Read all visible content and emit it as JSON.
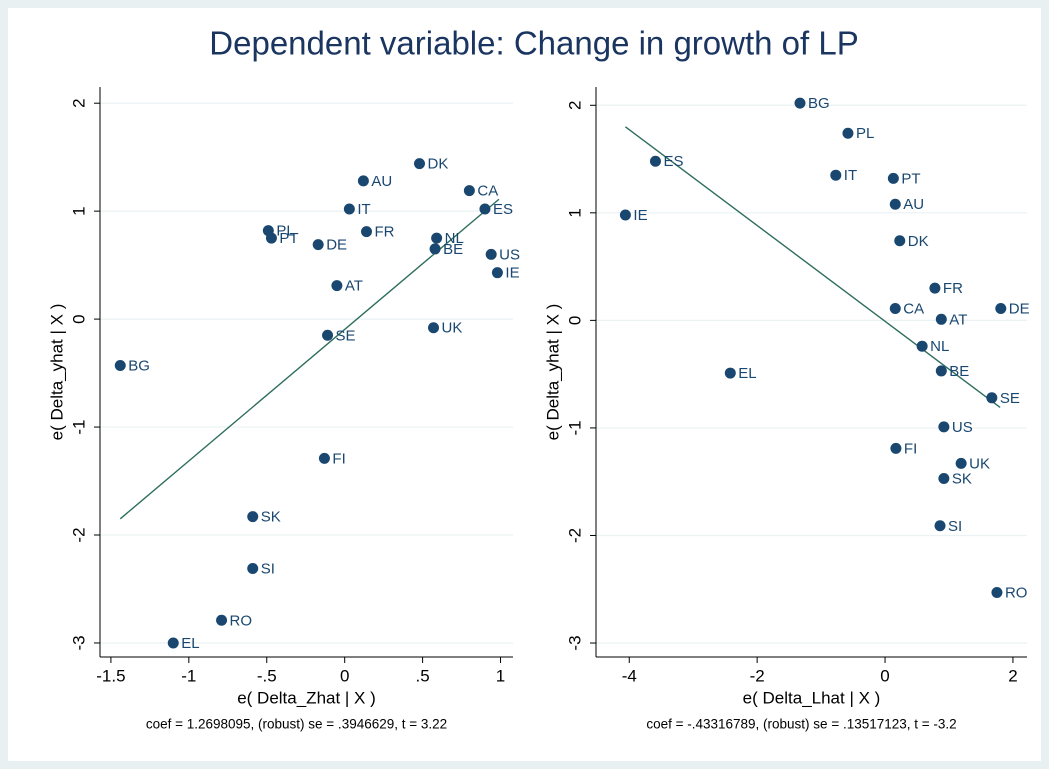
{
  "title": "Dependent variable: Change in growth of LP",
  "chart_data": [
    {
      "type": "scatter",
      "x_label": "e( Delta_Zhat | X )",
      "y_label": "e( Delta_yhat | X )",
      "note": "coef = 1.2698095, (robust) se = .3946629, t = 3.22",
      "color": "#1a476f",
      "labels": [
        "DK",
        "AU",
        "CA",
        "IT",
        "ES",
        "PL",
        "PT",
        "FR",
        "DE",
        "NL",
        "BE",
        "US",
        "IE",
        "AT",
        "UK",
        "SE",
        "BG",
        "FI",
        "SK",
        "SI",
        "RO",
        "EL"
      ],
      "x": [
        0.48,
        0.12,
        0.8,
        0.03,
        0.9,
        -0.49,
        -0.47,
        0.14,
        -0.17,
        0.59,
        0.58,
        0.94,
        0.98,
        -0.05,
        0.57,
        -0.11,
        -1.44,
        -0.13,
        -0.59,
        -0.59,
        -0.79,
        -1.1
      ],
      "y": [
        1.44,
        1.28,
        1.19,
        1.02,
        1.02,
        0.82,
        0.75,
        0.81,
        0.69,
        0.75,
        0.65,
        0.6,
        0.43,
        0.31,
        -0.08,
        -0.15,
        -0.43,
        -1.29,
        -1.83,
        -2.31,
        -2.79,
        -3.0
      ],
      "fit": {
        "x": [
          -1.44,
          0.99
        ],
        "y": [
          -1.85,
          1.11
        ],
        "color": "#2e6e5e"
      },
      "xlim": [
        -1.57,
        1.08
      ],
      "ylim": [
        -3.13,
        2.15
      ],
      "xticks": [
        -1.5,
        -1,
        {
          "value": -0.5,
          "label": "-.5"
        },
        0,
        {
          "value": 0.5,
          "label": ".5"
        },
        1
      ],
      "yticks": [
        -3,
        -2,
        -1,
        0,
        1,
        2
      ],
      "grid": true
    },
    {
      "type": "scatter",
      "x_label": "e( Delta_Lhat | X )",
      "y_label": "e( Delta_yhat | X )",
      "note": "coef = -.43316789, (robust) se = .13517123, t = -3.2",
      "color": "#1a476f",
      "labels": [
        "BG",
        "PL",
        "ES",
        "IT",
        "PT",
        "IE",
        "AU",
        "DK",
        "FR",
        "CA",
        "DE",
        "AT",
        "NL",
        "EL",
        "BE",
        "SE",
        "US",
        "FI",
        "UK",
        "SK",
        "SI",
        "RO"
      ],
      "x": [
        -1.33,
        -0.58,
        -3.59,
        -0.77,
        0.13,
        -4.06,
        0.16,
        0.23,
        0.78,
        0.16,
        1.81,
        0.88,
        0.58,
        -2.42,
        0.88,
        1.67,
        0.92,
        0.17,
        1.19,
        0.92,
        0.86,
        1.75
      ],
      "y": [
        2.02,
        1.74,
        1.48,
        1.35,
        1.32,
        0.98,
        1.08,
        0.74,
        0.3,
        0.11,
        0.11,
        0.01,
        -0.24,
        -0.49,
        -0.47,
        -0.72,
        -0.99,
        -1.19,
        -1.33,
        -1.47,
        -1.91,
        -2.53
      ],
      "fit": {
        "x": [
          -4.06,
          1.8
        ],
        "y": [
          1.8,
          -0.81
        ],
        "color": "#2e6e5e"
      },
      "xlim": [
        -4.52,
        2.22
      ],
      "ylim": [
        -3.13,
        2.17
      ],
      "xticks": [
        -4,
        -2,
        0,
        2
      ],
      "yticks": [
        -3,
        -2,
        -1,
        0,
        1,
        2
      ],
      "grid": true
    }
  ]
}
